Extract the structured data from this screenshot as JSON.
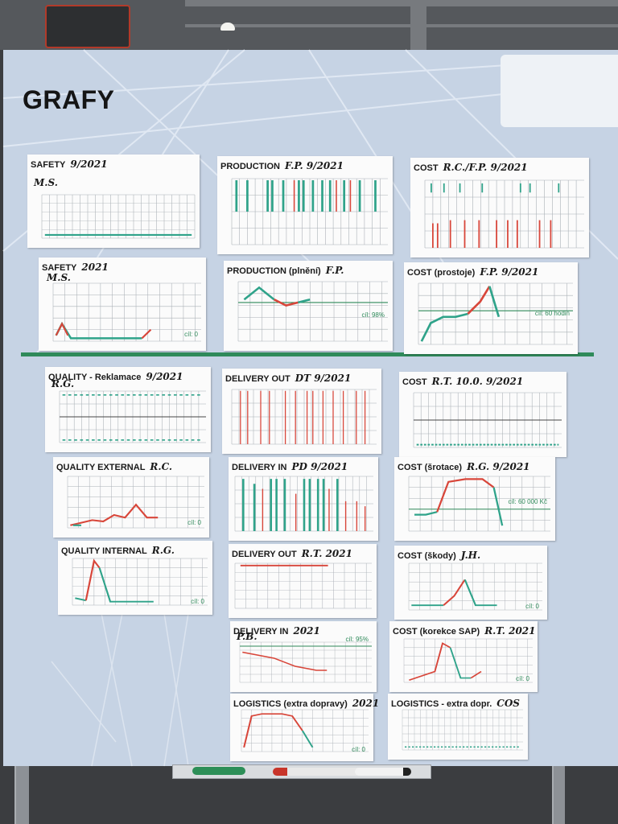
{
  "board": {
    "title": "GRAFY"
  },
  "sheets": {
    "safety_month": {
      "title": "SAFETY",
      "note": "9/2021",
      "sub": "M.S."
    },
    "production_month": {
      "title": "PRODUCTION",
      "note": "F.P. 9/2021"
    },
    "cost_month": {
      "title": "COST",
      "note": "R.C./F.P. 9/2021"
    },
    "safety_year": {
      "title": "SAFETY",
      "note": "2021",
      "sub": "M.S.",
      "target": "cíl: 0"
    },
    "production_plneni": {
      "title": "PRODUCTION (plnění)",
      "note": "F.P.",
      "target": "cíl: 98%"
    },
    "cost_prostoje": {
      "title": "COST (prostoje)",
      "note": "F.P. 9/2021",
      "target": "cíl: 60 hodin"
    },
    "quality_reklamace": {
      "title": "QUALITY - Reklamace",
      "note": "9/2021",
      "sub": "R.G."
    },
    "delivery_out_dt": {
      "title": "DELIVERY OUT",
      "note": "DT 9/2021"
    },
    "cost_rt": {
      "title": "COST",
      "note": "R.T. 10.0. 9/2021"
    },
    "quality_external": {
      "title": "QUALITY EXTERNAL",
      "note": "R.C.",
      "target": "cíl: 0"
    },
    "delivery_in_pd": {
      "title": "DELIVERY IN",
      "note": "PD 9/2021"
    },
    "cost_srotace": {
      "title": "COST (šrotace)",
      "note": "R.G. 9/2021",
      "target": "cíl: 60 000 Kč"
    },
    "quality_internal": {
      "title": "QUALITY INTERNAL",
      "note": "R.G.",
      "target": "cíl: 0"
    },
    "delivery_out_rt": {
      "title": "DELIVERY OUT",
      "note": "R.T. 2021"
    },
    "cost_skody": {
      "title": "COST (škody)",
      "note": "J.H.",
      "target": "cíl: 0"
    },
    "delivery_in_year": {
      "title": "DELIVERY IN",
      "note": "2021",
      "sub": "P.B.",
      "target": "cíl: 95%"
    },
    "cost_korekce": {
      "title": "COST (korekce SAP)",
      "note": "R.T. 2021",
      "target": "cíl: 0"
    },
    "logistics_extra": {
      "title": "LOGISTICS (extra dopravy)",
      "note": "2021",
      "target": "cíl: 0"
    },
    "logistics_extra_dopr": {
      "title": "LOGISTICS - extra dopr.",
      "note": "COS"
    }
  },
  "colors": {
    "green_ink": "#2fa38a",
    "red_ink": "#d8463a",
    "grid": "#aab0b6",
    "board": "#c6d3e4",
    "header_green": "#2f9a55"
  }
}
